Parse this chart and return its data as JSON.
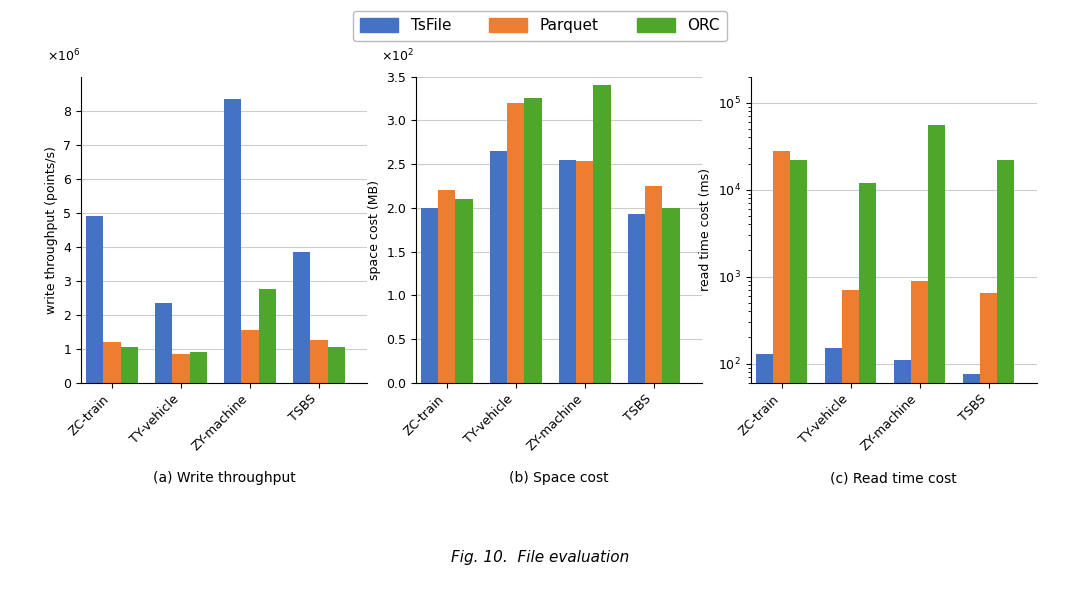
{
  "categories": [
    "ZC-train",
    "TY-vehicle",
    "ZY-machine",
    "TSBS"
  ],
  "write_throughput": {
    "TsFile": [
      4900000,
      2350000,
      8350000,
      3850000
    ],
    "Parquet": [
      1200000,
      850000,
      1550000,
      1250000
    ],
    "ORC": [
      1050000,
      900000,
      2750000,
      1050000
    ]
  },
  "space_cost": {
    "TsFile": [
      200,
      265,
      255,
      193
    ],
    "Parquet": [
      220,
      320,
      253,
      225
    ],
    "ORC": [
      210,
      325,
      340,
      200
    ]
  },
  "read_time_cost": {
    "TsFile": [
      130,
      150,
      110,
      75
    ],
    "Parquet": [
      28000,
      700,
      880,
      640
    ],
    "ORC": [
      22000,
      12000,
      55000,
      22000
    ]
  },
  "colors": {
    "TsFile": "#4472C4",
    "Parquet": "#ED7D31",
    "ORC": "#4EA72A"
  },
  "write_ylabel": "write throughput (points/s)",
  "space_ylabel": "space cost (MB)",
  "read_ylabel": "read time cost (ms)",
  "subplot_labels": [
    "(a) Write throughput",
    "(b) Space cost",
    "(c) Read time cost"
  ],
  "fig_caption": "Fig. 10.  File evaluation",
  "legend_labels": [
    "TsFile",
    "Parquet",
    "ORC"
  ]
}
